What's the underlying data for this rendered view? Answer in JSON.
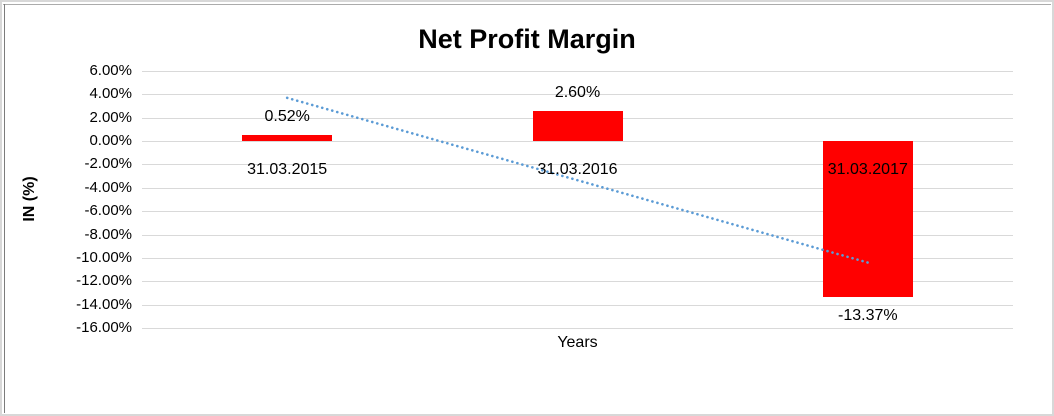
{
  "chart_data": {
    "type": "bar",
    "title": "Net Profit Margin",
    "xlabel": "Years",
    "ylabel": "IN (%)",
    "categories": [
      "31.03.2015",
      "31.03.2016",
      "31.03.2017"
    ],
    "values": [
      0.52,
      2.6,
      -13.37
    ],
    "data_labels": [
      "0.52%",
      "2.60%",
      "-13.37%"
    ],
    "y_ticks": [
      {
        "value": 6,
        "label": "6.00%"
      },
      {
        "value": 4,
        "label": "4.00%"
      },
      {
        "value": 2,
        "label": "2.00%"
      },
      {
        "value": 0,
        "label": "0.00%"
      },
      {
        "value": -2,
        "label": "-2.00%"
      },
      {
        "value": -4,
        "label": "-4.00%"
      },
      {
        "value": -6,
        "label": "-6.00%"
      },
      {
        "value": -8,
        "label": "-8.00%"
      },
      {
        "value": -10,
        "label": "-10.00%"
      },
      {
        "value": -12,
        "label": "-12.00%"
      },
      {
        "value": -14,
        "label": "-14.00%"
      },
      {
        "value": -16,
        "label": "-16.00%"
      }
    ],
    "ylim": [
      -16,
      6
    ],
    "grid": true,
    "legend": false,
    "trendline": {
      "type": "linear",
      "style": "dotted",
      "start_value": 3.7,
      "end_value": -10.4
    },
    "colors": {
      "bar": "#FF0000",
      "gridline": "#D9D9D9",
      "trendline": "#5B9BD5",
      "text": "#000000",
      "background": "#FFFFFF"
    }
  }
}
